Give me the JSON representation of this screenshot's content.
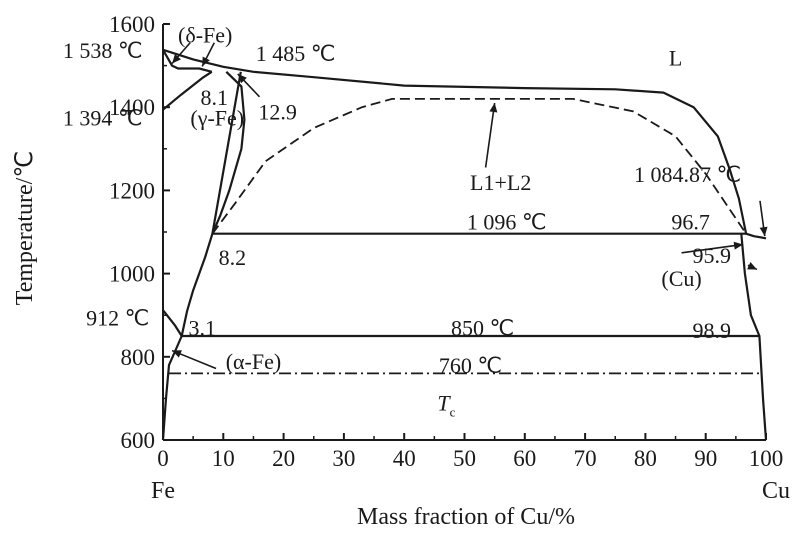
{
  "chart_data": {
    "type": "line",
    "title": "",
    "xlabel": "Mass fraction of Cu/%",
    "ylabel": "Temperature/℃",
    "xlim": [
      0,
      100
    ],
    "ylim": [
      600,
      1600
    ],
    "x_ticks": [
      "0",
      "10",
      "20",
      "30",
      "40",
      "50",
      "60",
      "70",
      "80",
      "90",
      "100"
    ],
    "y_ticks": [
      "600",
      "800",
      "1000",
      "1200",
      "1400",
      "1600"
    ],
    "x_start_label": "Fe",
    "x_end_label": "Cu",
    "grid": false,
    "series": [
      {
        "style": "solid",
        "points": [
          [
            0,
            1538
          ],
          [
            5,
            1515
          ],
          [
            10,
            1497
          ],
          [
            15,
            1485
          ],
          [
            25,
            1472
          ],
          [
            40,
            1452
          ],
          [
            60,
            1446
          ],
          [
            75,
            1443
          ],
          [
            83,
            1435
          ],
          [
            88,
            1400
          ],
          [
            92,
            1330
          ],
          [
            94,
            1250
          ],
          [
            95.5,
            1180
          ],
          [
            96.7,
            1096
          ],
          [
            98,
            1090
          ],
          [
            100,
            1084.87
          ]
        ]
      },
      {
        "style": "solid",
        "points": [
          [
            0,
            1538
          ],
          [
            1.5,
            1500
          ],
          [
            2.5,
            1493
          ],
          [
            6,
            1493
          ],
          [
            8.1,
            1485
          ]
        ]
      },
      {
        "style": "solid",
        "points": [
          [
            0,
            1394
          ],
          [
            3,
            1430
          ],
          [
            6.5,
            1470
          ],
          [
            8.1,
            1485
          ]
        ]
      },
      {
        "style": "solid",
        "points": [
          [
            8.2,
            1096
          ],
          [
            12.9,
            1485
          ]
        ]
      },
      {
        "style": "solid",
        "points": [
          [
            10.5,
            1485
          ],
          [
            13,
            1450
          ],
          [
            13.5,
            1370
          ],
          [
            13,
            1300
          ],
          [
            11,
            1200
          ],
          [
            9.5,
            1140
          ],
          [
            8.2,
            1096
          ],
          [
            7,
            1040
          ],
          [
            5,
            960
          ],
          [
            4,
            910
          ],
          [
            3.1,
            850
          ],
          [
            2.2,
            820
          ],
          [
            1,
            780
          ],
          [
            0.5,
            700
          ],
          [
            0,
            600
          ]
        ]
      },
      {
        "style": "solid",
        "points": [
          [
            0,
            912
          ],
          [
            2,
            875
          ],
          [
            3.1,
            850
          ]
        ]
      },
      {
        "style": "solid",
        "points": [
          [
            8.2,
            1096
          ],
          [
            96.7,
            1096
          ]
        ]
      },
      {
        "style": "solid",
        "points": [
          [
            3.1,
            850
          ],
          [
            98.9,
            850
          ]
        ]
      },
      {
        "style": "solid",
        "points": [
          [
            95.9,
            1096
          ],
          [
            96.5,
            1000
          ],
          [
            97.5,
            900
          ],
          [
            98.9,
            850
          ],
          [
            99.5,
            700
          ],
          [
            100,
            600
          ]
        ]
      },
      {
        "style": "dashed",
        "points": [
          [
            8.2,
            1096
          ],
          [
            12,
            1170
          ],
          [
            17,
            1270
          ],
          [
            25,
            1350
          ],
          [
            33,
            1400
          ],
          [
            38,
            1420
          ],
          [
            68,
            1420
          ],
          [
            78,
            1390
          ],
          [
            85,
            1330
          ],
          [
            90,
            1240
          ],
          [
            96.7,
            1096
          ]
        ]
      },
      {
        "style": "dashdot",
        "points": [
          [
            1,
            760
          ],
          [
            99.5,
            760
          ]
        ]
      }
    ],
    "annotations": [
      {
        "text": "1 538 ℃",
        "x": -10,
        "y": 1538,
        "anchor": "middle"
      },
      {
        "text": "(δ-Fe)",
        "x": 7,
        "y": 1575,
        "anchor": "middle"
      },
      {
        "text": "1 485 ℃",
        "x": 22,
        "y": 1530,
        "anchor": "middle"
      },
      {
        "text": "L",
        "x": 85,
        "y": 1520,
        "anchor": "middle"
      },
      {
        "text": "8.1",
        "x": 8.5,
        "y": 1425,
        "anchor": "middle"
      },
      {
        "text": "12.9",
        "x": 19,
        "y": 1390,
        "anchor": "middle"
      },
      {
        "text": "1 394 ℃",
        "x": -10,
        "y": 1375,
        "anchor": "middle"
      },
      {
        "text": "(γ-Fe)",
        "x": 9,
        "y": 1375,
        "anchor": "middle"
      },
      {
        "text": "L1+L2",
        "x": 56,
        "y": 1220,
        "anchor": "middle"
      },
      {
        "text": "1 084.87 ℃",
        "x": 87,
        "y": 1240,
        "anchor": "middle"
      },
      {
        "text": "1 096 ℃",
        "x": 57,
        "y": 1125,
        "anchor": "middle"
      },
      {
        "text": "96.7",
        "x": 87.5,
        "y": 1125,
        "anchor": "middle"
      },
      {
        "text": "8.2",
        "x": 11.5,
        "y": 1040,
        "anchor": "middle"
      },
      {
        "text": "95.9",
        "x": 91,
        "y": 1045,
        "anchor": "middle"
      },
      {
        "text": "(Cu)",
        "x": 86,
        "y": 990,
        "anchor": "middle"
      },
      {
        "text": "912 ℃",
        "x": -7.5,
        "y": 895,
        "anchor": "middle"
      },
      {
        "text": "3.1",
        "x": 6.5,
        "y": 870,
        "anchor": "middle"
      },
      {
        "text": "850 ℃",
        "x": 53,
        "y": 870,
        "anchor": "middle"
      },
      {
        "text": "98.9",
        "x": 91,
        "y": 865,
        "anchor": "middle"
      },
      {
        "text": "(α-Fe)",
        "x": 15,
        "y": 790,
        "anchor": "middle"
      },
      {
        "text": "760 ℃",
        "x": 51,
        "y": 780,
        "anchor": "middle"
      }
    ],
    "special_labels": [
      {
        "text": "T",
        "sub": "c",
        "x": 47,
        "y": 690
      }
    ],
    "arrows": [
      {
        "from": [
          4.5,
          1555
        ],
        "to": [
          1.5,
          1505
        ]
      },
      {
        "from": [
          8.5,
          1555
        ],
        "to": [
          6.5,
          1498
        ]
      },
      {
        "from": [
          16,
          1425
        ],
        "to": [
          12.4,
          1480
        ]
      },
      {
        "from": [
          53.5,
          1255
        ],
        "to": [
          55,
          1410
        ]
      },
      {
        "from": [
          99,
          1175
        ],
        "to": [
          99.8,
          1090
        ]
      },
      {
        "from": [
          86,
          1050
        ],
        "to": [
          96.2,
          1070
        ]
      },
      {
        "from": [
          97,
          1020
        ],
        "to": [
          98.5,
          1010
        ]
      },
      {
        "from": [
          8.8,
          772
        ],
        "to": [
          1.5,
          815
        ]
      }
    ]
  }
}
